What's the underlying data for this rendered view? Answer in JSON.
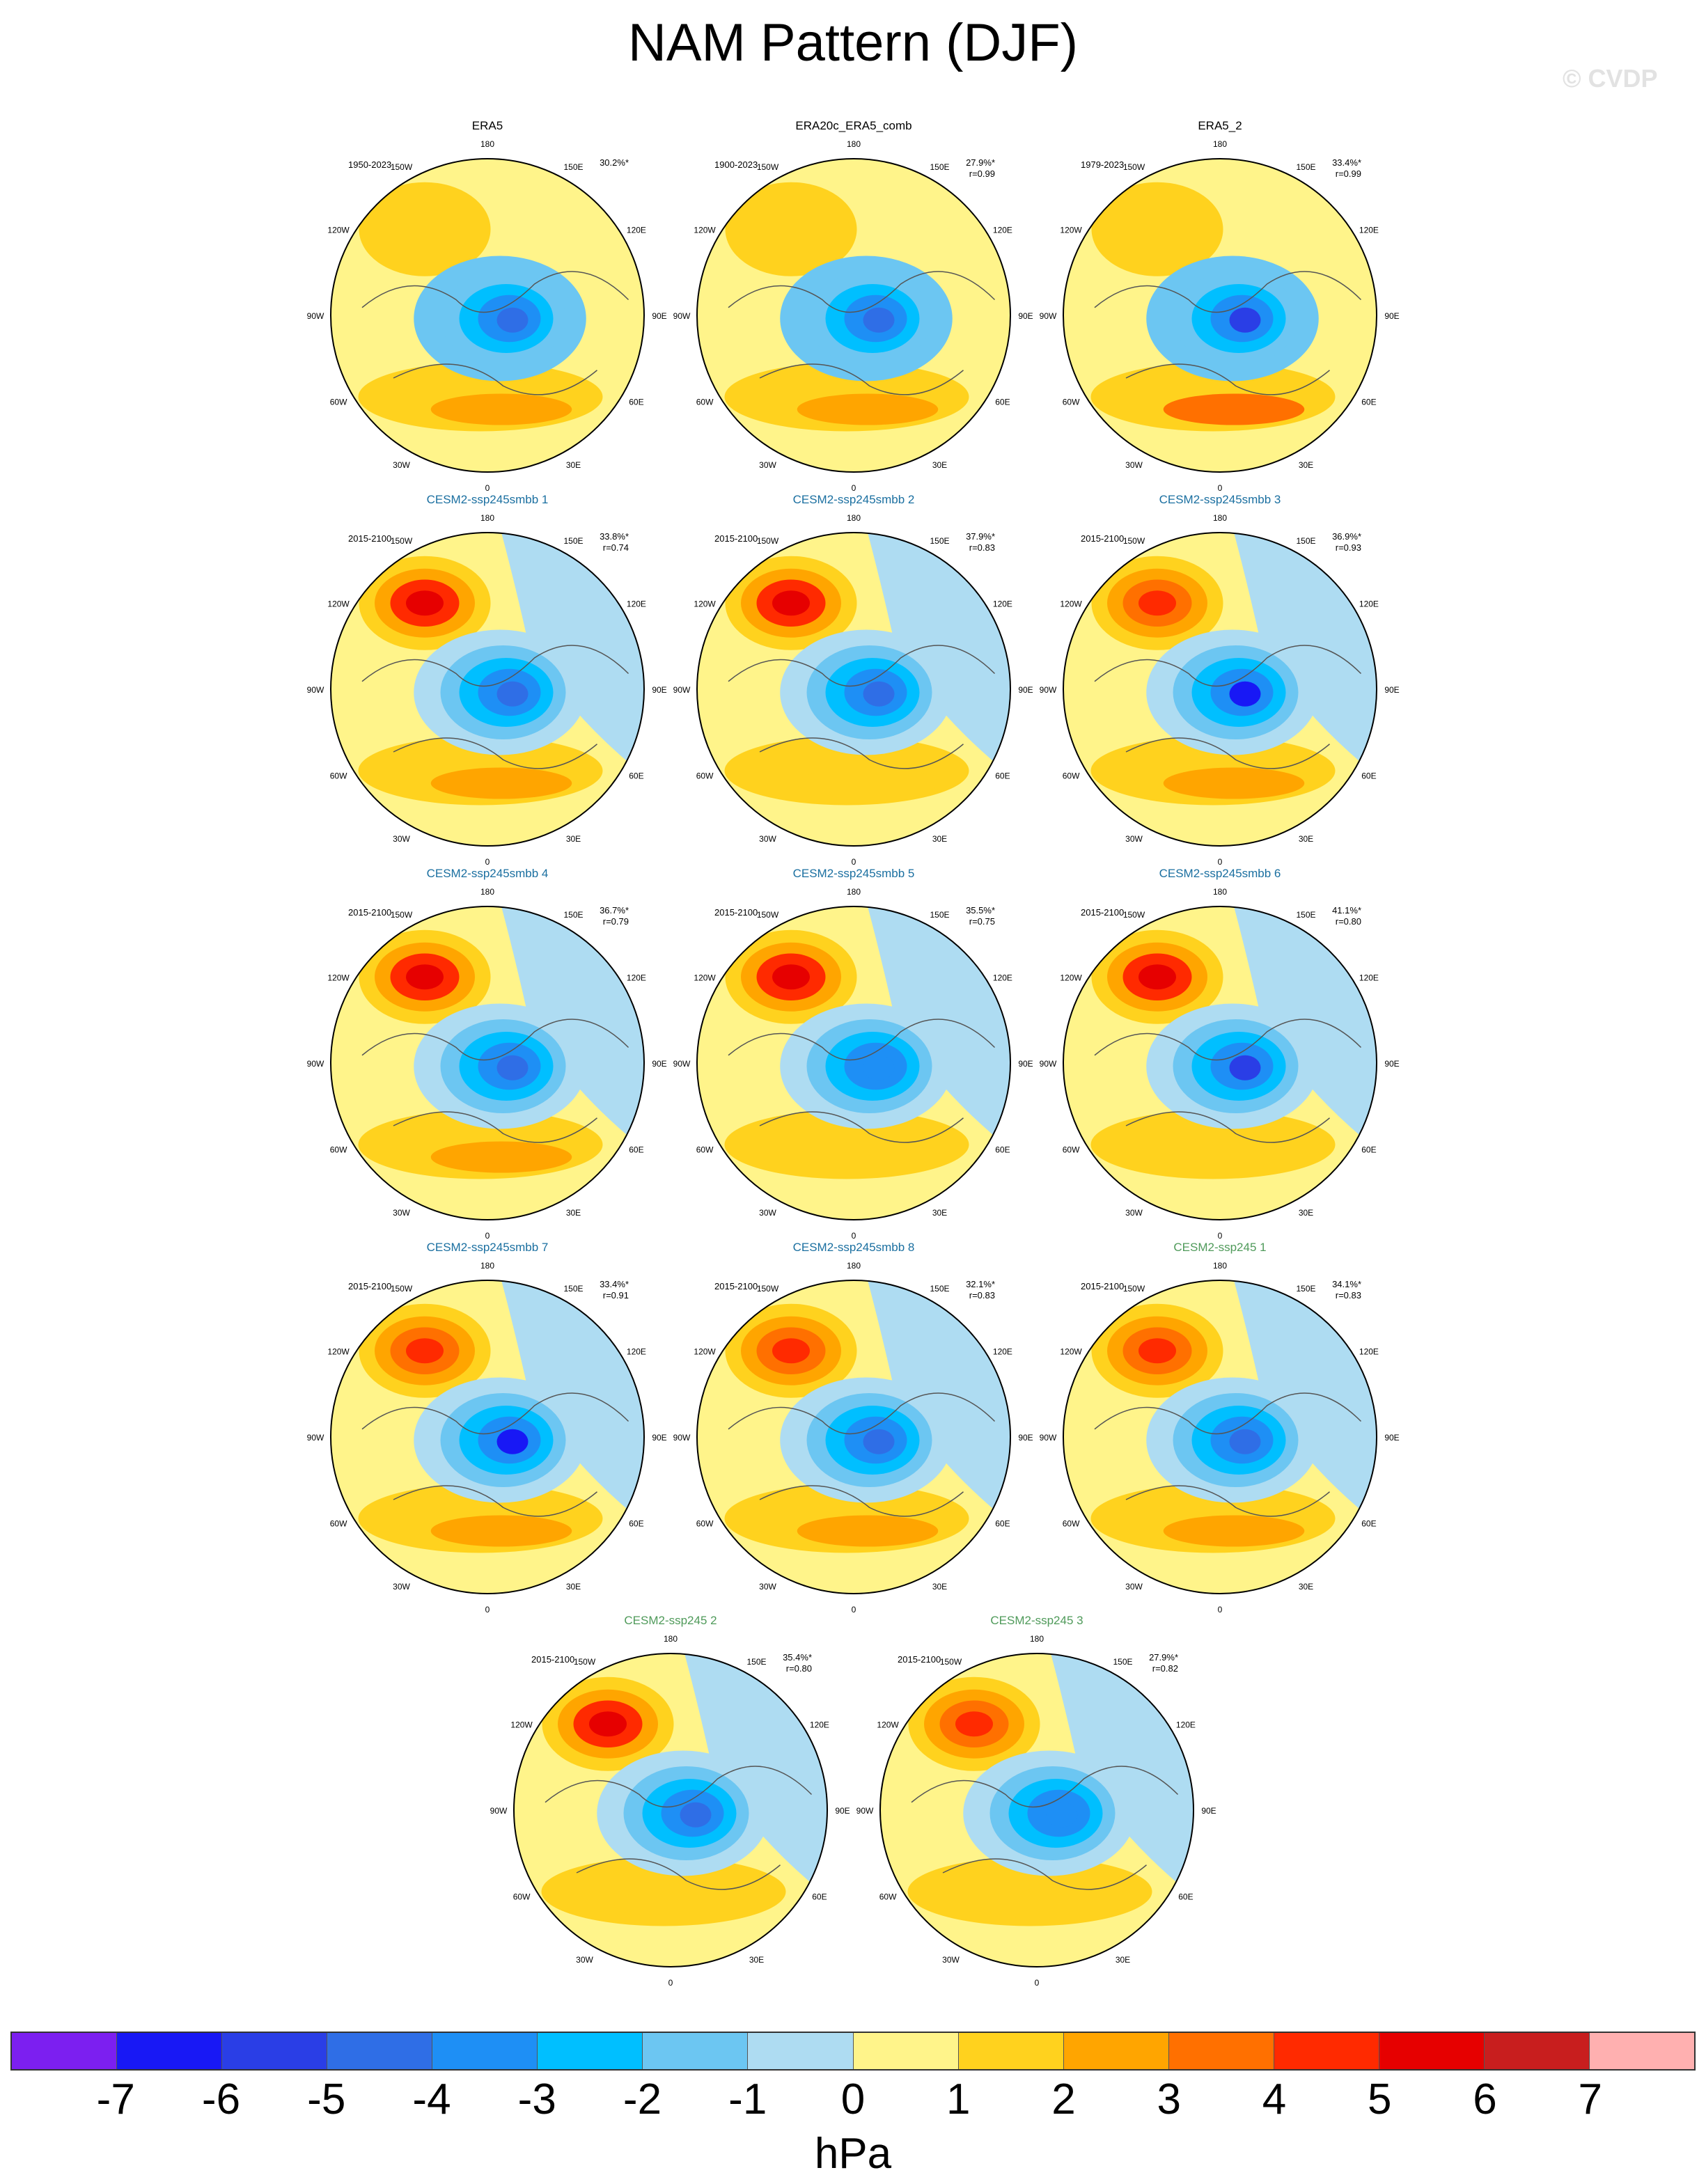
{
  "title": "NAM Pattern (DJF)",
  "watermark": "© CVDP",
  "colorbar": {
    "colors": [
      "#7c1ff0",
      "#1818f5",
      "#2a3ee6",
      "#2f6ee6",
      "#1e8ff5",
      "#00bfff",
      "#6cc6f2",
      "#aedcf2",
      "#fff48a",
      "#ffd21e",
      "#ffa500",
      "#ff7000",
      "#ff2a00",
      "#e60000",
      "#c81e1e",
      "#ffb0b0"
    ],
    "ticks": [
      "-7",
      "-6",
      "-5",
      "-4",
      "-3",
      "-2",
      "-1",
      "0",
      "1",
      "2",
      "3",
      "4",
      "5",
      "6",
      "7"
    ],
    "unit": "hPa"
  },
  "lon_labels": [
    "180",
    "150E",
    "120E",
    "90E",
    "60E",
    "30E",
    "0",
    "30W",
    "60W",
    "90W",
    "120W",
    "150W"
  ],
  "panels": [
    {
      "title": "ERA5",
      "kind": "obs",
      "period": "1950-2023",
      "pct": "30.2%*",
      "r": "",
      "pattern": {
        "blue": "#6cc6f2",
        "blue2": "#1e8ff5",
        "blue3": "#2f6ee6",
        "high": "#ffd21e",
        "highCore": "#ffd21e",
        "atl": "#ffa500",
        "pac": "#ffd21e"
      }
    },
    {
      "title": "ERA20c_ERA5_comb",
      "kind": "obs",
      "period": "1900-2023",
      "pct": "27.9%*",
      "r": "r=0.99",
      "pattern": {
        "blue": "#6cc6f2",
        "blue2": "#1e8ff5",
        "blue3": "#2f6ee6",
        "high": "#ffd21e",
        "highCore": "#ffd21e",
        "atl": "#ffa500",
        "pac": "#ffd21e"
      }
    },
    {
      "title": "ERA5_2",
      "kind": "obs",
      "period": "1979-2023",
      "pct": "33.4%*",
      "r": "r=0.99",
      "pattern": {
        "blue": "#6cc6f2",
        "blue2": "#1e8ff5",
        "blue3": "#2a3ee6",
        "high": "#ffd21e",
        "highCore": "#ffd21e",
        "atl": "#ff7000",
        "pac": "#ffd21e"
      }
    },
    {
      "title": "CESM2-ssp245smbb 1",
      "kind": "model",
      "period": "2015-2100",
      "pct": "33.8%*",
      "r": "r=0.74",
      "pattern": {
        "blue": "#aedcf2",
        "blue2": "#1e8ff5",
        "blue3": "#2f6ee6",
        "high": "#ffa500",
        "highCore": "#e60000",
        "atl": "#ffa500",
        "pac": "#ff2a00"
      }
    },
    {
      "title": "CESM2-ssp245smbb 2",
      "kind": "model",
      "period": "2015-2100",
      "pct": "37.9%*",
      "r": "r=0.83",
      "pattern": {
        "blue": "#aedcf2",
        "blue2": "#1e8ff5",
        "blue3": "#2f6ee6",
        "high": "#ffa500",
        "highCore": "#e60000",
        "atl": "#ffd21e",
        "pac": "#ff2a00"
      }
    },
    {
      "title": "CESM2-ssp245smbb 3",
      "kind": "model",
      "period": "2015-2100",
      "pct": "36.9%*",
      "r": "r=0.93",
      "pattern": {
        "blue": "#aedcf2",
        "blue2": "#1e8ff5",
        "blue3": "#1818f5",
        "high": "#ffa500",
        "highCore": "#ff2a00",
        "atl": "#ffa500",
        "pac": "#ff7000"
      }
    },
    {
      "title": "CESM2-ssp245smbb 4",
      "kind": "model",
      "period": "2015-2100",
      "pct": "36.7%*",
      "r": "r=0.79",
      "pattern": {
        "blue": "#aedcf2",
        "blue2": "#1e8ff5",
        "blue3": "#2f6ee6",
        "high": "#ffa500",
        "highCore": "#e60000",
        "atl": "#ffa500",
        "pac": "#ff2a00"
      }
    },
    {
      "title": "CESM2-ssp245smbb 5",
      "kind": "model",
      "period": "2015-2100",
      "pct": "35.5%*",
      "r": "r=0.75",
      "pattern": {
        "blue": "#aedcf2",
        "blue2": "#1e8ff5",
        "blue3": "#1e8ff5",
        "high": "#ffa500",
        "highCore": "#e60000",
        "atl": "#ffd21e",
        "pac": "#ff2a00"
      }
    },
    {
      "title": "CESM2-ssp245smbb 6",
      "kind": "model",
      "period": "2015-2100",
      "pct": "41.1%*",
      "r": "r=0.80",
      "pattern": {
        "blue": "#aedcf2",
        "blue2": "#1e8ff5",
        "blue3": "#2a3ee6",
        "high": "#ffa500",
        "highCore": "#e60000",
        "atl": "#ffd21e",
        "pac": "#ff2a00"
      }
    },
    {
      "title": "CESM2-ssp245smbb 7",
      "kind": "model",
      "period": "2015-2100",
      "pct": "33.4%*",
      "r": "r=0.91",
      "pattern": {
        "blue": "#aedcf2",
        "blue2": "#1e8ff5",
        "blue3": "#1818f5",
        "high": "#ffa500",
        "highCore": "#ff2a00",
        "atl": "#ffa500",
        "pac": "#ff7000"
      }
    },
    {
      "title": "CESM2-ssp245smbb 8",
      "kind": "model",
      "period": "2015-2100",
      "pct": "32.1%*",
      "r": "r=0.83",
      "pattern": {
        "blue": "#aedcf2",
        "blue2": "#1e8ff5",
        "blue3": "#2f6ee6",
        "high": "#ffa500",
        "highCore": "#ff2a00",
        "atl": "#ffa500",
        "pac": "#ff7000"
      }
    },
    {
      "title": "CESM2-ssp245 1",
      "kind": "model2",
      "period": "2015-2100",
      "pct": "34.1%*",
      "r": "r=0.83",
      "pattern": {
        "blue": "#aedcf2",
        "blue2": "#1e8ff5",
        "blue3": "#2f6ee6",
        "high": "#ffa500",
        "highCore": "#ff2a00",
        "atl": "#ffa500",
        "pac": "#ff7000"
      }
    },
    {
      "title": "CESM2-ssp245 2",
      "kind": "model2",
      "period": "2015-2100",
      "pct": "35.4%*",
      "r": "r=0.80",
      "pattern": {
        "blue": "#aedcf2",
        "blue2": "#1e8ff5",
        "blue3": "#2f6ee6",
        "high": "#ffa500",
        "highCore": "#e60000",
        "atl": "#ffd21e",
        "pac": "#ff2a00"
      }
    },
    {
      "title": "CESM2-ssp245 3",
      "kind": "model2",
      "period": "2015-2100",
      "pct": "27.9%*",
      "r": "r=0.82",
      "pattern": {
        "blue": "#aedcf2",
        "blue2": "#1e8ff5",
        "blue3": "#1e8ff5",
        "high": "#ffa500",
        "highCore": "#ff2a00",
        "atl": "#ffd21e",
        "pac": "#ff7000"
      }
    }
  ],
  "title_colors": {
    "obs": "#000000",
    "model": "#1a6fa0",
    "model2": "#4f9a5a"
  }
}
